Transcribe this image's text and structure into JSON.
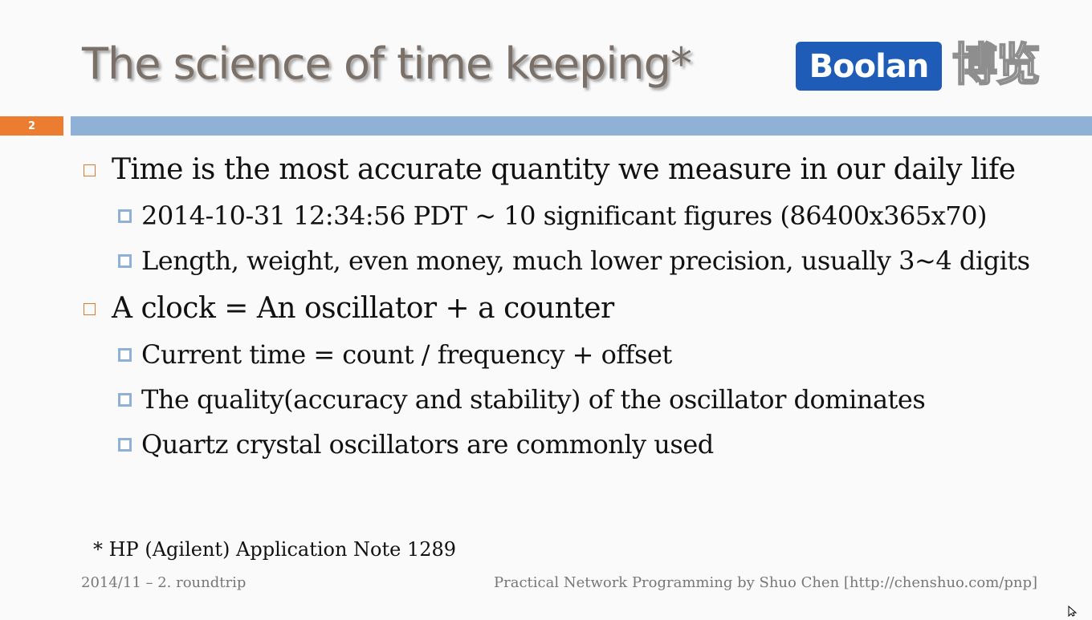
{
  "slide": {
    "title": "The science of time keeping*",
    "number": "2",
    "logo_text": "Boolan",
    "logo_cn": "博览",
    "bullets": [
      {
        "text": "Time is the most accurate quantity we measure in our daily life",
        "sub": [
          "2014-10-31 12:34:56 PDT ~ 10 significant figures (86400x365x70)",
          "Length, weight, even money, much lower precision, usually 3~4 digits"
        ]
      },
      {
        "text": "A clock = An oscillator + a counter",
        "sub": [
          "Current time = count / frequency + offset",
          "The quality(accuracy and stability) of the oscillator dominates",
          "Quartz crystal oscillators are commonly used"
        ]
      }
    ],
    "footnote": "* HP (Agilent) Application Note 1289",
    "footer_left": "2014/11 – 2. roundtrip",
    "footer_right": "Practical Network Programming by Shuo Chen [http://chenshuo.com/pnp]"
  },
  "colors": {
    "accent_orange": "#ec7c30",
    "accent_blue": "#8fb1d5",
    "logo_blue": "#1e5cb8"
  }
}
